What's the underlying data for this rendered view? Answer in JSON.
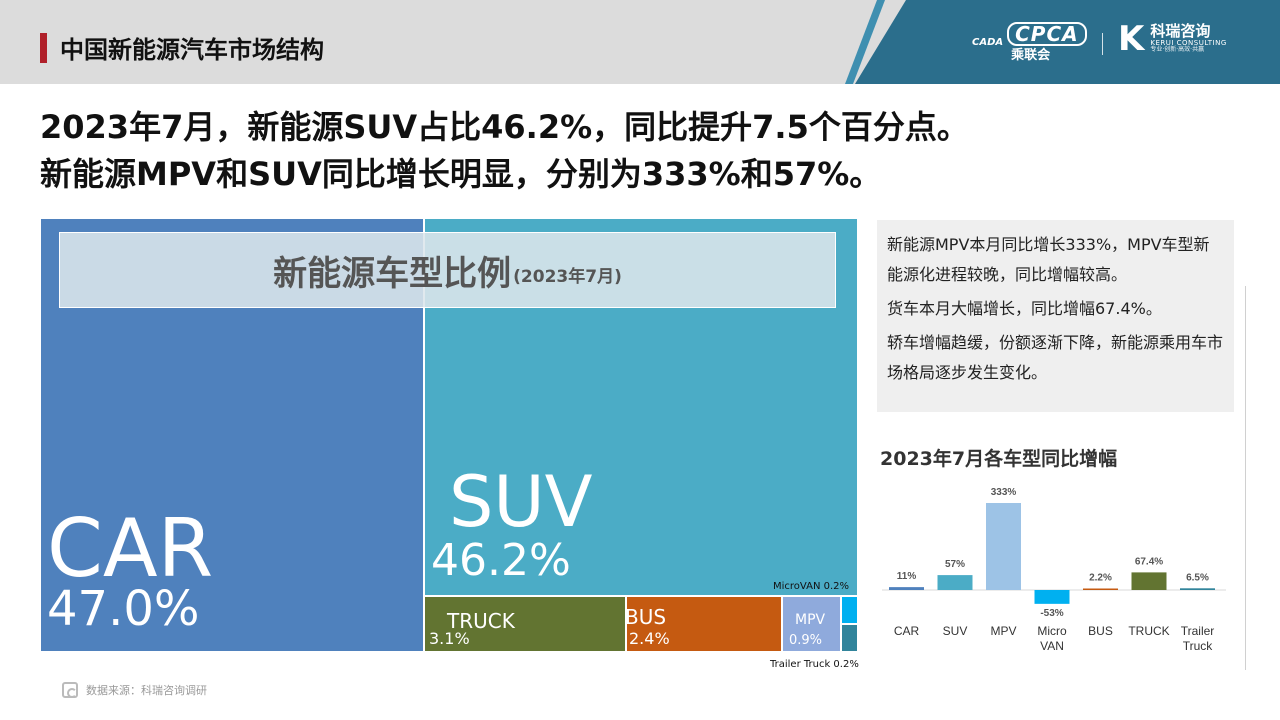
{
  "header": {
    "title": "中国新能源汽车市场结构",
    "logo_cpca_text": "CPCA",
    "logo_cpca_cn": "乘联会",
    "logo_cpca_mark": "CADA",
    "logo_kr_text": "科瑞咨询",
    "logo_kr_en": "KERUI CONSULTING",
    "logo_kr_sub": "专业·创新·高效·共赢",
    "colors": {
      "bar": "#dcdcdc",
      "accent": "#b0202a",
      "brand": "#2b6e8c"
    }
  },
  "headline": {
    "line1": "2023年7月，新能源SUV占比46.2%，同比提升7.5个百分点。",
    "line2": "新能源MPV和SUV同比增长明显，分别为333%和57%。"
  },
  "treemap": {
    "title": "新能源车型比例",
    "subtitle": "(2023年7月)"
  },
  "notes": {
    "p1": "新能源MPV本月同比增长333%，MPV车型新能源化进程较晚，同比增幅较高。",
    "p2": "货车本月大幅增长，同比增幅67.4%。",
    "p3": "轿车增幅趋缓，份额逐渐下降，新能源乘用车市场格局逐步发生变化。"
  },
  "yoy_title": "2023年7月各车型同比增幅",
  "source": "数据来源：科瑞咨询调研",
  "chart_data": [
    {
      "type": "treemap",
      "title": "新能源车型比例",
      "subtitle": "(2023年7月)",
      "items": [
        {
          "name": "CAR",
          "value": 47.0,
          "label": "47.0%",
          "color": "#4f81bd"
        },
        {
          "name": "SUV",
          "value": 46.2,
          "label": "46.2%",
          "color": "#4bacc6"
        },
        {
          "name": "TRUCK",
          "value": 3.1,
          "label": "3.1%",
          "color": "#627431"
        },
        {
          "name": "BUS",
          "value": 2.4,
          "label": "2.4%",
          "color": "#c55a11"
        },
        {
          "name": "MPV",
          "value": 0.9,
          "label": "0.9%",
          "color": "#8faadc"
        },
        {
          "name": "MicroVAN",
          "value": 0.2,
          "label": "MicroVAN 0.2%",
          "color": "#00b0f0"
        },
        {
          "name": "Trailer Truck",
          "value": 0.2,
          "label": "Trailer Truck 0.2%",
          "color": "#31849b"
        }
      ]
    },
    {
      "type": "bar",
      "title": "2023年7月各车型同比增幅",
      "categories": [
        "CAR",
        "SUV",
        "MPV",
        "Micro VAN",
        "BUS",
        "TRUCK",
        "Trailer Truck"
      ],
      "values": [
        11,
        57,
        333,
        -53,
        2.2,
        67.4,
        6.5
      ],
      "data_labels": [
        "11%",
        "57%",
        "333%",
        "-53%",
        "2.2%",
        "67.4%",
        "6.5%"
      ],
      "colors": [
        "#4f81bd",
        "#4bacc6",
        "#9dc3e6",
        "#00b0f0",
        "#c55a11",
        "#627431",
        "#31849b"
      ],
      "ylim": [
        -60,
        340
      ],
      "grid": false
    }
  ]
}
